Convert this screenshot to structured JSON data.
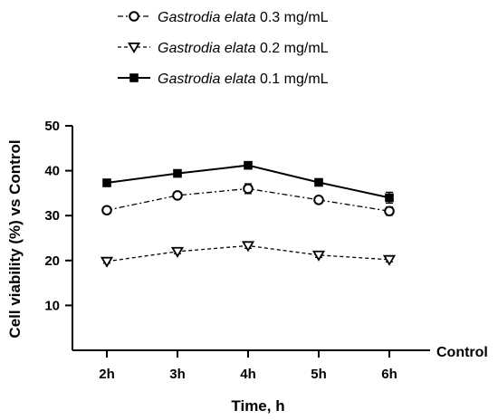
{
  "chart_data": {
    "type": "line",
    "categories": [
      "2h",
      "3h",
      "4h",
      "5h",
      "6h"
    ],
    "series": [
      {
        "name": "Gastrodia elata 0.3 mg/mL",
        "name_species": "Gastrodia elata",
        "name_dose": " 0.3 mg/mL",
        "marker": "open-circle",
        "line": "dash-dot",
        "values": [
          31.2,
          34.5,
          36.0,
          33.5,
          31.0
        ],
        "errors": [
          0.6,
          0.6,
          1.1,
          0.7,
          0.9
        ]
      },
      {
        "name": "Gastrodia elata 0.2 mg/mL",
        "name_species": "Gastrodia elata",
        "name_dose": " 0.2 mg/mL",
        "marker": "open-triangle-down",
        "line": "dashed",
        "values": [
          19.8,
          22.0,
          23.3,
          21.2,
          20.2
        ],
        "errors": [
          0.4,
          0.5,
          0.6,
          0.5,
          0.5
        ]
      },
      {
        "name": "Gastrodia elata 0.1 mg/mL",
        "name_species": "Gastrodia elata",
        "name_dose": " 0.1 mg/mL",
        "marker": "filled-square",
        "line": "solid",
        "values": [
          37.3,
          39.4,
          41.2,
          37.4,
          34.0
        ],
        "errors": [
          0.5,
          0.5,
          0.6,
          0.6,
          1.2
        ]
      }
    ],
    "xlabel": "Time, h",
    "ylabel": "Cell viability (%) vs Control",
    "extra_axis_label": "Control",
    "ylim": [
      0,
      50
    ],
    "yticks": [
      "10",
      "20",
      "30",
      "40",
      "50"
    ],
    "ytick_values": [
      10,
      20,
      30,
      40,
      50
    ],
    "legend_position": "top",
    "grid": false,
    "color": "#000000"
  }
}
